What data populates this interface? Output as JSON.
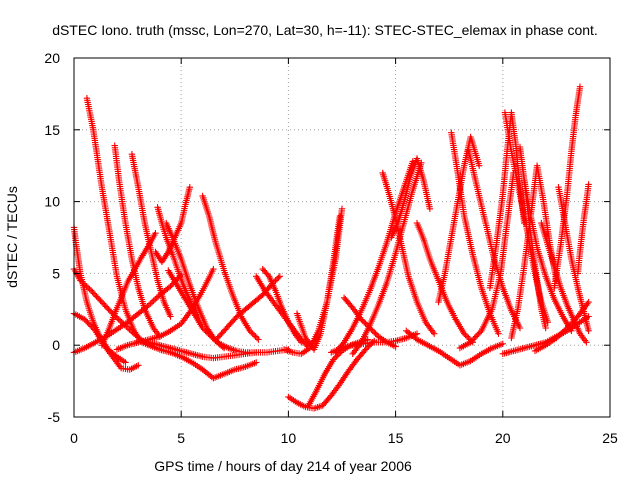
{
  "chart_data": {
    "type": "scatter",
    "title": "dSTEC Iono. truth (mssc, Lon=270, Lat=30, h=-11): STEC-STEC_elemax in phase cont.",
    "xlabel": "GPS time / hours of day 214 of year 2006",
    "ylabel": "dSTEC  / TECUs",
    "xlim": [
      0,
      25
    ],
    "ylim": [
      -5,
      20
    ],
    "xticks": [
      "0",
      "5",
      "10",
      "15",
      "20",
      "25"
    ],
    "yticks": [
      "-5",
      "0",
      "5",
      "10",
      "15",
      "20"
    ],
    "grid": true,
    "marker": "+",
    "series_color": "#ff0000",
    "series": [
      {
        "x": [
          0.6,
          0.9,
          1.3,
          1.7,
          2.0,
          2.4,
          2.8,
          3.1
        ],
        "y": [
          17.2,
          15.0,
          11.0,
          7.5,
          4.8,
          2.5,
          1.0,
          0.3
        ]
      },
      {
        "x": [
          1.9,
          2.1,
          2.4,
          2.7,
          3.0,
          3.3,
          3.7,
          4.0
        ],
        "y": [
          13.9,
          11.5,
          8.5,
          6.0,
          4.0,
          2.5,
          1.2,
          0.6
        ]
      },
      {
        "x": [
          2.7,
          3.0,
          3.3,
          3.6,
          3.9,
          4.2,
          4.5
        ],
        "y": [
          13.3,
          11.0,
          8.5,
          6.5,
          4.5,
          3.0,
          2.0
        ]
      },
      {
        "x": [
          0.0,
          0.1,
          0.3,
          0.6,
          0.9,
          1.2,
          1.6,
          2.0,
          2.4
        ],
        "y": [
          8.2,
          7.0,
          5.0,
          3.0,
          1.6,
          0.6,
          -0.3,
          -0.8,
          -1.2
        ]
      },
      {
        "x": [
          0.0,
          0.3,
          0.8,
          1.3,
          1.8,
          2.3,
          2.8,
          3.2,
          3.6
        ],
        "y": [
          5.3,
          4.5,
          3.8,
          3.0,
          2.2,
          1.5,
          0.8,
          0.3,
          0.0
        ]
      },
      {
        "x": [
          0.0,
          0.5,
          1.0,
          1.5,
          2.0,
          2.5,
          3.0,
          3.5,
          4.0,
          4.5,
          5.0
        ],
        "y": [
          -0.5,
          -0.2,
          0.2,
          0.6,
          1.1,
          1.6,
          2.2,
          2.8,
          3.5,
          4.1,
          4.9
        ]
      },
      {
        "x": [
          0.0,
          0.5,
          1.0,
          1.4,
          1.8,
          2.2,
          2.6,
          3.0
        ],
        "y": [
          2.2,
          1.8,
          1.0,
          0.0,
          -0.8,
          -1.6,
          -1.7,
          -1.4
        ]
      },
      {
        "x": [
          1.3,
          1.6,
          1.9,
          2.2,
          2.5,
          2.8,
          3.1,
          3.5,
          3.8
        ],
        "y": [
          0.0,
          1.0,
          2.2,
          3.3,
          4.4,
          5.2,
          6.0,
          7.0,
          7.8
        ]
      },
      {
        "x": [
          2.0,
          2.5,
          3.0,
          3.5,
          4.0,
          4.5,
          5.0,
          5.5,
          6.0,
          6.5
        ],
        "y": [
          -0.3,
          0.0,
          0.2,
          0.4,
          0.6,
          1.0,
          1.5,
          2.5,
          3.8,
          5.3
        ]
      },
      {
        "x": [
          3.9,
          4.1,
          4.3,
          4.6,
          4.9,
          5.2,
          5.5,
          5.8
        ],
        "y": [
          9.6,
          8.5,
          7.5,
          6.3,
          5.0,
          3.8,
          2.8,
          1.9
        ]
      },
      {
        "x": [
          4.3,
          4.6,
          5.0,
          5.4,
          5.8,
          6.2,
          6.6,
          7.0
        ],
        "y": [
          8.5,
          7.5,
          6.0,
          4.2,
          2.6,
          1.2,
          0.3,
          -0.2
        ]
      },
      {
        "x": [
          4.4,
          4.8,
          5.2,
          5.6,
          6.0,
          6.4,
          6.8,
          7.2,
          7.6,
          8.0,
          8.5
        ],
        "y": [
          5.2,
          4.2,
          3.2,
          2.2,
          1.2,
          0.6,
          0.1,
          -0.2,
          -0.4,
          -0.5,
          -0.5
        ]
      },
      {
        "x": [
          3.8,
          4.1,
          4.4,
          4.7,
          5.0,
          5.2,
          5.4
        ],
        "y": [
          6.5,
          5.8,
          6.5,
          7.5,
          8.5,
          9.8,
          11.0
        ]
      },
      {
        "x": [
          6.0,
          6.3,
          6.6,
          7.0,
          7.4,
          7.8,
          8.2,
          8.6
        ],
        "y": [
          10.4,
          9.0,
          7.2,
          5.2,
          3.5,
          2.0,
          1.0,
          0.4
        ]
      },
      {
        "x": [
          3.0,
          3.5,
          4.0,
          4.5,
          5.0,
          5.5,
          6.0,
          6.5,
          7.0,
          7.5,
          8.0,
          8.5
        ],
        "y": [
          0.3,
          0.0,
          -0.3,
          -0.5,
          -0.8,
          -1.2,
          -1.7,
          -2.3,
          -2.0,
          -1.7,
          -1.5,
          -1.2
        ]
      },
      {
        "x": [
          3.5,
          4.0,
          4.5,
          5.0,
          5.5,
          6.0,
          6.5,
          7.0,
          7.5,
          8.0,
          8.5,
          9.0,
          9.5,
          10.0
        ],
        "y": [
          0.2,
          0.0,
          -0.2,
          -0.4,
          -0.6,
          -0.8,
          -0.9,
          -0.8,
          -0.7,
          -0.6,
          -0.5,
          -0.5,
          -0.4,
          -0.3
        ]
      },
      {
        "x": [
          6.7,
          7.0,
          7.3,
          7.6,
          8.0,
          8.4,
          8.8,
          9.2,
          9.6
        ],
        "y": [
          0.5,
          1.0,
          1.5,
          2.0,
          2.5,
          3.0,
          3.5,
          4.2,
          4.8
        ]
      },
      {
        "x": [
          8.8,
          9.1,
          9.4,
          9.7,
          10.0,
          10.3,
          10.6
        ],
        "y": [
          5.3,
          4.8,
          3.8,
          2.6,
          1.6,
          0.8,
          0.2
        ]
      },
      {
        "x": [
          8.5,
          8.9,
          9.3,
          9.7,
          10.1,
          10.5,
          10.9
        ],
        "y": [
          4.8,
          3.8,
          3.0,
          2.2,
          1.4,
          0.6,
          -0.1
        ]
      },
      {
        "x": [
          9.8,
          10.2,
          10.6,
          11.0,
          11.4,
          11.8,
          12.2,
          12.5
        ],
        "y": [
          -0.3,
          -0.5,
          -0.6,
          -0.2,
          1.0,
          3.0,
          6.0,
          9.5
        ]
      },
      {
        "x": [
          10.4,
          10.8,
          11.2,
          11.5,
          11.8,
          12.1,
          12.4
        ],
        "y": [
          2.2,
          0.5,
          -0.3,
          0.8,
          3.0,
          5.8,
          9.0
        ]
      },
      {
        "x": [
          10.0,
          10.4,
          10.8,
          11.2,
          11.6,
          12.0,
          12.4,
          12.8,
          13.2,
          13.6,
          14.0
        ],
        "y": [
          -3.6,
          -4.0,
          -4.3,
          -4.4,
          -4.2,
          -3.5,
          -2.7,
          -1.8,
          -1.0,
          -0.3,
          0.3
        ]
      },
      {
        "x": [
          10.9,
          11.3,
          11.7,
          12.1,
          12.5,
          12.9,
          13.3,
          13.7
        ],
        "y": [
          -4.3,
          -3.2,
          -2.0,
          -1.0,
          -0.4,
          0.0,
          0.2,
          0.4
        ]
      },
      {
        "x": [
          12.0,
          12.5,
          13.0,
          13.5,
          14.0,
          14.5,
          15.0,
          15.5,
          16.0
        ],
        "y": [
          -0.5,
          -0.2,
          0.0,
          0.1,
          0.2,
          0.2,
          0.3,
          0.5,
          0.8
        ]
      },
      {
        "x": [
          12.6,
          13.0,
          13.4,
          13.8,
          14.2,
          14.6,
          15.0
        ],
        "y": [
          3.3,
          2.6,
          1.8,
          1.2,
          0.6,
          0.2,
          -0.1
        ]
      },
      {
        "x": [
          12.2,
          12.6,
          13.0,
          13.4,
          13.8,
          14.2,
          14.6,
          15.0,
          15.4,
          15.8
        ],
        "y": [
          -0.5,
          0.2,
          1.2,
          2.4,
          3.8,
          5.4,
          7.2,
          9.2,
          11.0,
          12.8
        ]
      },
      {
        "x": [
          13.0,
          13.4,
          13.8,
          14.2,
          14.6,
          15.0,
          15.4,
          15.8,
          16.2
        ],
        "y": [
          -0.6,
          0.2,
          1.4,
          2.8,
          4.4,
          6.4,
          8.6,
          10.8,
          12.7
        ]
      },
      {
        "x": [
          14.4,
          14.7,
          15.0,
          15.3,
          15.6,
          16.0,
          16.4,
          16.8
        ],
        "y": [
          12.0,
          10.5,
          8.8,
          6.8,
          4.8,
          3.0,
          1.6,
          0.8
        ]
      },
      {
        "x": [
          14.8,
          15.1,
          15.4,
          15.7,
          16.0,
          16.3,
          16.6
        ],
        "y": [
          7.5,
          8.5,
          10.0,
          11.8,
          13.0,
          11.5,
          9.5
        ]
      },
      {
        "x": [
          15.5,
          16.0,
          16.5,
          17.0,
          17.5,
          18.0,
          18.5,
          19.0,
          19.5,
          20.0
        ],
        "y": [
          1.0,
          0.4,
          0.0,
          -0.4,
          -0.9,
          -1.4,
          -1.1,
          -0.6,
          -0.2,
          0.1
        ]
      },
      {
        "x": [
          16.0,
          16.3,
          16.6,
          17.0,
          17.4,
          17.8,
          18.2,
          18.6
        ],
        "y": [
          8.5,
          7.4,
          6.0,
          4.5,
          3.0,
          1.8,
          0.8,
          0.2
        ]
      },
      {
        "x": [
          17.0,
          17.3,
          17.6,
          17.9,
          18.2,
          18.5,
          18.9
        ],
        "y": [
          3.0,
          5.0,
          7.5,
          10.0,
          12.5,
          14.5,
          12.5
        ]
      },
      {
        "x": [
          17.6,
          17.9,
          18.2,
          18.6,
          19.0,
          19.4,
          19.8
        ],
        "y": [
          14.8,
          12.0,
          9.0,
          6.3,
          4.0,
          2.2,
          0.8
        ]
      },
      {
        "x": [
          18.4,
          18.8,
          19.2,
          19.6,
          20.0,
          20.4,
          20.8
        ],
        "y": [
          13.6,
          11.0,
          8.5,
          6.0,
          4.0,
          2.4,
          1.2
        ]
      },
      {
        "x": [
          18.0,
          18.5,
          19.0,
          19.5,
          19.9,
          20.2,
          20.5
        ],
        "y": [
          -0.2,
          0.2,
          1.0,
          2.5,
          5.0,
          8.5,
          12.0
        ]
      },
      {
        "x": [
          19.4,
          19.7,
          20.0,
          20.2,
          20.4,
          20.6,
          20.8,
          21.0
        ],
        "y": [
          4.0,
          7.0,
          10.5,
          13.5,
          16.2,
          14.0,
          11.0,
          8.5
        ]
      },
      {
        "x": [
          20.1,
          20.4,
          20.8,
          21.2,
          21.5,
          21.8,
          22.1
        ],
        "y": [
          16.2,
          13.5,
          10.5,
          7.5,
          5.0,
          3.0,
          1.6
        ]
      },
      {
        "x": [
          20.4,
          20.7,
          21.0,
          21.3,
          21.6,
          21.9,
          22.2,
          22.5
        ],
        "y": [
          0.5,
          2.5,
          5.5,
          9.0,
          12.5,
          10.0,
          7.0,
          4.5
        ]
      },
      {
        "x": [
          20.8,
          21.0,
          21.2,
          21.4,
          21.6,
          21.8,
          22.0
        ],
        "y": [
          13.8,
          11.5,
          9.0,
          6.5,
          4.5,
          2.5,
          1.2
        ]
      },
      {
        "x": [
          21.0,
          21.3,
          21.6,
          22.0,
          22.4,
          22.8,
          23.2
        ],
        "y": [
          11.5,
          9.0,
          6.8,
          4.8,
          3.2,
          2.0,
          1.0
        ]
      },
      {
        "x": [
          20.0,
          20.5,
          21.0,
          21.5,
          22.0,
          22.5,
          23.0,
          23.5,
          24.0
        ],
        "y": [
          -0.6,
          -0.4,
          -0.2,
          0.0,
          0.2,
          0.6,
          1.0,
          1.5,
          2.0
        ]
      },
      {
        "x": [
          21.5,
          22.0,
          22.5,
          23.0,
          23.5,
          24.0
        ],
        "y": [
          -0.4,
          0.0,
          0.5,
          1.2,
          2.0,
          3.0
        ]
      },
      {
        "x": [
          21.8,
          22.1,
          22.4,
          22.7,
          23.0,
          23.3,
          23.6,
          23.9
        ],
        "y": [
          8.5,
          7.0,
          5.5,
          4.0,
          2.8,
          1.8,
          0.8,
          0.2
        ]
      },
      {
        "x": [
          22.4,
          22.7,
          23.0,
          23.2,
          23.4,
          23.6
        ],
        "y": [
          4.0,
          7.0,
          10.5,
          13.5,
          16.0,
          18.0
        ]
      },
      {
        "x": [
          23.5,
          23.6,
          23.7,
          23.8,
          23.9,
          24.0
        ],
        "y": [
          5.0,
          6.5,
          7.8,
          9.0,
          10.0,
          11.2
        ]
      },
      {
        "x": [
          22.6,
          22.9,
          23.2,
          23.5,
          23.8,
          24.0
        ],
        "y": [
          11.0,
          8.5,
          6.0,
          4.0,
          2.2,
          1.0
        ]
      }
    ]
  }
}
